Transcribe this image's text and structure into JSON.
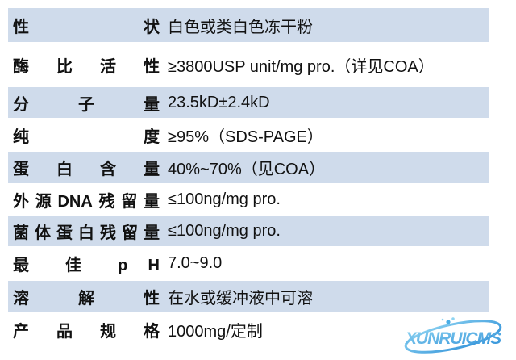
{
  "table": {
    "rows": [
      {
        "label": "性 状",
        "value": "白色或类白色冻干粉"
      },
      {
        "label": "酶 比 活 性",
        "value": "≥3800USP unit/mg pro.（详见COA）"
      },
      {
        "label": "分 子 量",
        "value": "23.5kD±2.4kD"
      },
      {
        "label": "纯 度",
        "value": "≥95%（SDS-PAGE）"
      },
      {
        "label": "蛋 白 含 量",
        "value": "40%~70%（见COA）"
      },
      {
        "label": "外源DNA残留量",
        "value": "≤100ng/mg pro."
      },
      {
        "label": "菌体蛋白残留量",
        "value": "≤100ng/mg pro."
      },
      {
        "label": "最 佳 p H",
        "value": "7.0~9.0"
      },
      {
        "label": "溶 解 性",
        "value": "在水或缓冲液中可溶"
      },
      {
        "label": "产 品 规 格",
        "value": "1000mg/定制"
      }
    ]
  },
  "watermark": {
    "text": "XUNRUICMS"
  },
  "colors": {
    "band": "#cfdbeb",
    "text": "#111111",
    "logo_light": "#8ed4f2",
    "logo_mid": "#4aaee6",
    "logo_dark": "#2e8fd8"
  }
}
